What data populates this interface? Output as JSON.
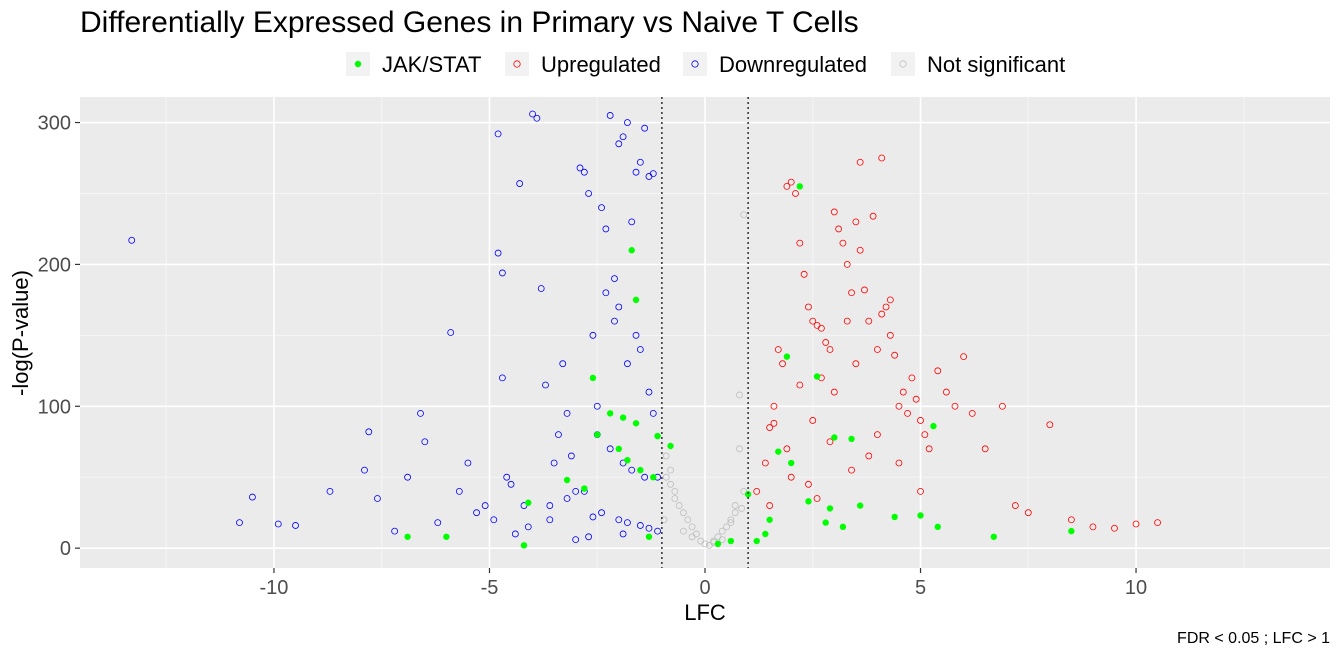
{
  "chart_data": {
    "type": "scatter",
    "title": "Differentially Expressed Genes in Primary vs Naive T Cells",
    "xlabel": "LFC",
    "ylabel": "-log(P-value)",
    "caption": "FDR < 0.05 ; LFC >  1",
    "xlim": [
      -14.5,
      14.5
    ],
    "ylim": [
      -14,
      318
    ],
    "x_ticks": [
      -10,
      -5,
      0,
      5,
      10
    ],
    "x_tick_labels": [
      "-10",
      "-5",
      "0",
      "5",
      "10"
    ],
    "y_ticks": [
      0,
      100,
      200,
      300
    ],
    "y_tick_labels": [
      "0",
      "100",
      "200",
      "300"
    ],
    "vlines": [
      -1,
      1
    ],
    "grid": true,
    "legend_position": "top",
    "legend": [
      {
        "label": "JAK/STAT",
        "color": "#00ff00",
        "shape": "filled"
      },
      {
        "label": "Upregulated",
        "color": "#ff0000",
        "shape": "open"
      },
      {
        "label": "Downregulated",
        "color": "#0000ff",
        "shape": "open"
      },
      {
        "label": "Not significant",
        "color": "#bebebe",
        "shape": "open"
      }
    ],
    "series": [
      {
        "name": "Downregulated",
        "color": "#0000ff",
        "shape": "open",
        "x": [
          -13.3,
          -10.5,
          -10.8,
          -9.9,
          -9.5,
          -8.7,
          -7.9,
          -7.8,
          -7.6,
          -7.2,
          -6.9,
          -6.6,
          -6.5,
          -6.2,
          -5.9,
          -5.7,
          -5.5,
          -5.3,
          -5.1,
          -4.9,
          -4.8,
          -4.8,
          -4.7,
          -4.7,
          -4.6,
          -4.5,
          -4.4,
          -4.3,
          -4.2,
          -4.1,
          -4.0,
          -3.9,
          -3.8,
          -3.7,
          -3.6,
          -3.5,
          -3.4,
          -3.3,
          -3.2,
          -3.1,
          -3.0,
          -2.9,
          -2.8,
          -2.7,
          -2.6,
          -2.5,
          -2.4,
          -2.3,
          -2.2,
          -2.1,
          -2.0,
          -1.9,
          -1.8,
          -1.7,
          -1.6,
          -1.5,
          -1.4,
          -1.3,
          -1.2,
          -1.1,
          -2.3,
          -2.1,
          -2.0,
          -1.8,
          -1.6,
          -1.5,
          -1.3,
          -1.2,
          -2.5,
          -2.2,
          -1.9,
          -1.7,
          -1.4,
          -2.8,
          -3.2,
          -3.6,
          -2.4,
          -2.6,
          -2.0,
          -1.8,
          -1.5,
          -1.3,
          -1.1,
          -1.9,
          -2.7,
          -3.0
        ],
        "y": [
          217,
          36,
          18,
          17,
          16,
          40,
          55,
          82,
          35,
          12,
          50,
          95,
          75,
          18,
          152,
          40,
          60,
          25,
          30,
          20,
          292,
          208,
          120,
          194,
          50,
          45,
          10,
          257,
          30,
          15,
          306,
          303,
          183,
          115,
          20,
          60,
          80,
          130,
          95,
          65,
          40,
          268,
          265,
          250,
          150,
          100,
          240,
          225,
          305,
          160,
          285,
          290,
          300,
          230,
          265,
          272,
          296,
          262,
          264,
          50,
          180,
          190,
          170,
          130,
          150,
          140,
          110,
          95,
          80,
          70,
          60,
          55,
          50,
          40,
          35,
          30,
          25,
          22,
          20,
          18,
          16,
          14,
          12,
          10,
          8,
          6
        ]
      },
      {
        "name": "Upregulated",
        "color": "#ff0000",
        "shape": "open",
        "x": [
          1.2,
          1.4,
          1.5,
          1.6,
          1.7,
          1.8,
          1.9,
          2.0,
          2.1,
          2.2,
          2.3,
          2.4,
          2.5,
          2.6,
          2.7,
          2.8,
          2.9,
          3.0,
          3.1,
          3.2,
          3.3,
          3.4,
          3.5,
          3.6,
          3.7,
          3.8,
          3.9,
          4.0,
          4.1,
          4.2,
          4.3,
          4.4,
          4.5,
          4.6,
          4.7,
          4.8,
          4.9,
          5.0,
          5.1,
          5.2,
          5.4,
          5.6,
          5.8,
          6.0,
          6.2,
          6.5,
          6.9,
          7.2,
          7.5,
          8.0,
          8.5,
          9.0,
          9.5,
          10.0,
          10.5,
          1.5,
          2.0,
          2.5,
          3.0,
          3.5,
          4.0,
          4.5,
          5.0,
          1.9,
          2.7,
          3.3,
          3.6,
          4.1,
          4.3,
          2.2,
          1.6,
          2.9,
          3.8,
          3.4,
          2.4,
          2.6
        ],
        "y": [
          40,
          60,
          85,
          100,
          140,
          130,
          255,
          258,
          250,
          215,
          193,
          170,
          160,
          157,
          155,
          145,
          140,
          237,
          225,
          215,
          200,
          180,
          230,
          210,
          182,
          160,
          234,
          140,
          165,
          170,
          175,
          136,
          100,
          110,
          95,
          120,
          105,
          90,
          80,
          70,
          125,
          110,
          100,
          135,
          95,
          70,
          100,
          30,
          25,
          87,
          20,
          15,
          14,
          17,
          18,
          30,
          50,
          90,
          110,
          130,
          80,
          60,
          40,
          70,
          120,
          160,
          272,
          275,
          150,
          115,
          88,
          75,
          65,
          55,
          45,
          35
        ]
      },
      {
        "name": "Not significant",
        "color": "#bebebe",
        "shape": "open",
        "x": [
          -0.9,
          -0.8,
          -0.7,
          -0.6,
          -0.5,
          -0.4,
          -0.3,
          -0.2,
          -0.1,
          0.0,
          0.1,
          0.2,
          0.3,
          0.4,
          0.5,
          0.6,
          0.7,
          0.8,
          0.9,
          0.8,
          0.9,
          0.7,
          -0.9,
          -0.8,
          -0.7,
          -0.95,
          0.85,
          0.6,
          -0.5,
          -0.3,
          0.4,
          0.2
        ],
        "y": [
          50,
          45,
          40,
          30,
          25,
          20,
          15,
          10,
          5,
          3,
          2,
          5,
          8,
          12,
          15,
          20,
          25,
          108,
          235,
          70,
          40,
          30,
          65,
          55,
          35,
          20,
          28,
          18,
          12,
          8,
          6,
          4
        ]
      },
      {
        "name": "JAK/STAT",
        "color": "#00ff00",
        "shape": "filled",
        "x": [
          2.2,
          -1.7,
          -1.6,
          1.9,
          2.6,
          -2.6,
          5.3,
          3.4,
          3.0,
          2.0,
          -2.2,
          -1.9,
          -1.6,
          -1.1,
          -0.8,
          -2.5,
          -2.0,
          -1.8,
          -1.5,
          -1.2,
          -4.1,
          -6.9,
          -6.0,
          -4.2,
          -1.3,
          0.3,
          0.6,
          1.0,
          1.5,
          1.7,
          2.4,
          2.9,
          3.6,
          4.4,
          5.0,
          5.4,
          6.7,
          8.5,
          2.8,
          3.2,
          1.4,
          1.2,
          -3.2,
          -2.8
        ],
        "y": [
          255,
          210,
          175,
          135,
          121,
          120,
          86,
          77,
          78,
          60,
          95,
          92,
          88,
          79,
          72,
          80,
          70,
          62,
          55,
          50,
          32,
          8,
          8,
          2,
          8,
          3,
          5,
          38,
          20,
          68,
          33,
          28,
          30,
          22,
          23,
          15,
          8,
          12,
          18,
          15,
          10,
          5,
          48,
          42
        ]
      }
    ]
  }
}
